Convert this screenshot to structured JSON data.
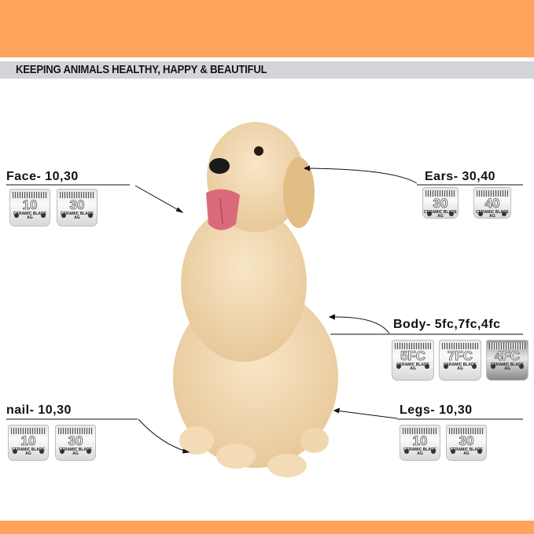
{
  "header": {
    "tagline": "KEEPING ANIMALS HEALTHY, HAPPY & BEAUTIFUL"
  },
  "colors": {
    "brand_orange": "#ffa45c",
    "tag_band": "#d3d4d8"
  },
  "groups": [
    {
      "id": "face",
      "label": "Face- 10,30",
      "blades": [
        {
          "number": "10",
          "text": "CERAMIC BLADE",
          "sub": "AG"
        },
        {
          "number": "30",
          "text": "CERAMIC BLADE",
          "sub": "AG"
        }
      ]
    },
    {
      "id": "ears",
      "label": "Ears- 30,40",
      "blades": [
        {
          "number": "30",
          "text": "CERAMIC BLADE",
          "sub": "AG"
        },
        {
          "number": "40",
          "text": "CERAMIC BLADE",
          "sub": "AG"
        }
      ]
    },
    {
      "id": "body",
      "label": "Body- 5fc,7fc,4fc",
      "blades": [
        {
          "number": "5FC",
          "text": "CERAMIC BLADE",
          "sub": "AG"
        },
        {
          "number": "7FC",
          "text": "CERAMIC BLADE",
          "sub": "AG"
        },
        {
          "number": "4FC",
          "text": "CERAMIC BLADE",
          "sub": "AG"
        }
      ]
    },
    {
      "id": "nail",
      "label": "nail- 10,30",
      "blades": [
        {
          "number": "10",
          "text": "CERAMIC BLADE",
          "sub": "AG"
        },
        {
          "number": "30",
          "text": "CERAMIC BLADE",
          "sub": "AG"
        }
      ]
    },
    {
      "id": "legs",
      "label": "Legs- 10,30",
      "blades": [
        {
          "number": "10",
          "text": "CERAMIC BLADE",
          "sub": "AG"
        },
        {
          "number": "30",
          "text": "CERAMIC BLADE",
          "sub": "AG"
        }
      ]
    }
  ]
}
